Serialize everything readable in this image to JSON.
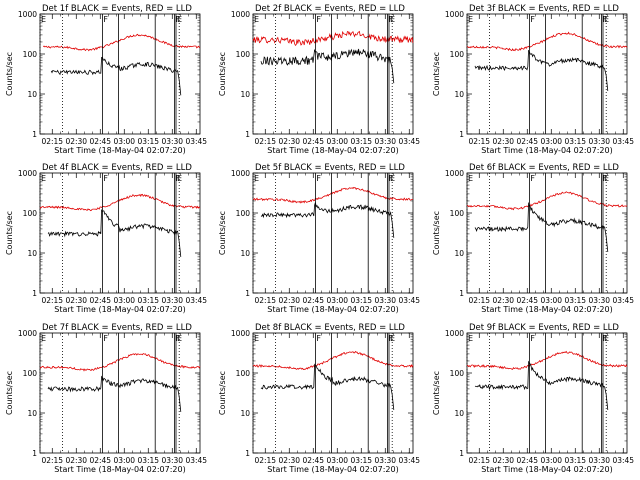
{
  "chart_data": {
    "type": "line",
    "layout": "3x3 grid",
    "panels": [
      {
        "title": "Det 1f BLACK = Events, RED = LLD",
        "events_level": 35,
        "events_peak": 70,
        "lld_level": 150,
        "lld_peak": 300,
        "missing_start": true
      },
      {
        "title": "Det 2f BLACK = Events, RED = LLD",
        "events_level": 70,
        "events_peak": 95,
        "lld_level": 230,
        "lld_peak": 320,
        "noisy": true
      },
      {
        "title": "Det 3f BLACK = Events, RED = LLD",
        "events_level": 45,
        "events_peak": 100,
        "lld_level": 150,
        "lld_peak": 330
      },
      {
        "title": "Det 4f BLACK = Events, RED = LLD",
        "events_level": 30,
        "events_peak": 100,
        "lld_level": 140,
        "lld_peak": 280
      },
      {
        "title": "Det 5f BLACK = Events, RED = LLD",
        "events_level": 90,
        "events_peak": 150,
        "lld_level": 220,
        "lld_peak": 420
      },
      {
        "title": "Det 6f BLACK = Events, RED = LLD",
        "events_level": 40,
        "events_peak": 130,
        "lld_level": 150,
        "lld_peak": 320
      },
      {
        "title": "Det 7f BLACK = Events, RED = LLD",
        "events_level": 40,
        "events_peak": 70,
        "lld_level": 140,
        "lld_peak": 300
      },
      {
        "title": "Det 8f BLACK = Events, RED = LLD",
        "events_level": 45,
        "events_peak": 140,
        "lld_level": 150,
        "lld_peak": 330
      },
      {
        "title": "Det 9f BLACK = Events, RED = LLD",
        "events_level": 45,
        "events_peak": 140,
        "lld_level": 150,
        "lld_peak": 330
      }
    ],
    "x_ticks": [
      "02:15",
      "02:30",
      "02:45",
      "03:00",
      "03:15",
      "03:30",
      "03:45"
    ],
    "x_range_minutes": [
      0,
      100
    ],
    "xlabel": "Start Time (18-May-04 02:07:20)",
    "ylabel": "Counts/sec",
    "y_ticks": [
      "1",
      "10",
      "100",
      "1000"
    ],
    "ylim": [
      1,
      1000
    ],
    "y_scale": "log",
    "series": [
      {
        "name": "Events",
        "color": "#000000"
      },
      {
        "name": "LLD",
        "color": "#e00000"
      }
    ],
    "markers": [
      {
        "label": "E",
        "minute": 0,
        "style": "dotted"
      },
      {
        "label": "",
        "minute": 14,
        "style": "dotted"
      },
      {
        "label": "F",
        "minute": 39,
        "style": "solid"
      },
      {
        "label": "",
        "minute": 49,
        "style": "solid"
      },
      {
        "label": "",
        "minute": 72,
        "style": "solid"
      },
      {
        "label": "F",
        "minute": 84,
        "style": "solid"
      },
      {
        "label": "E",
        "minute": 85,
        "style": "solid"
      },
      {
        "label": "",
        "minute": 87,
        "style": "dotted"
      }
    ]
  }
}
